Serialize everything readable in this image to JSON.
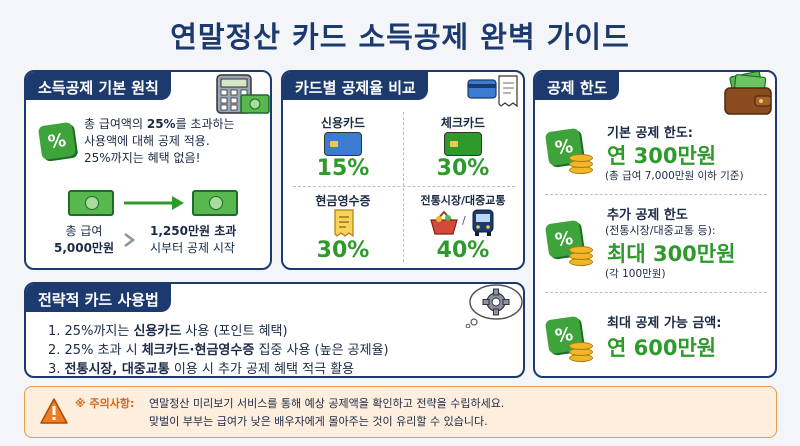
{
  "title": "연말정산 카드 소득공제 완벽 가이드",
  "principle": {
    "header": "소득공제 기본 원칙",
    "desc_line1_pre": "총 급여액의 ",
    "desc_line1_bold": "25%",
    "desc_line1_post": "를 초과하는",
    "desc_line2": "사용액에 대해 공제 적용.",
    "desc_line3": "25%까지는 혜택 없음!",
    "flow_left_line1": "총 급여",
    "flow_left_line2": "5,000만원",
    "flow_right_line1": "1,250만원 초과",
    "flow_right_line2": "시부터 공제 시작"
  },
  "rates": {
    "header": "카드별 공제율 비교",
    "items": [
      {
        "label": "신용카드",
        "value": "15%",
        "color": "#3b7bd0"
      },
      {
        "label": "체크카드",
        "value": "30%",
        "color": "#2e9a2b"
      },
      {
        "label": "현금영수증",
        "value": "30%",
        "color": "#f1c84b"
      },
      {
        "label": "전통시장/대중교통",
        "value": "40%",
        "color": "#1d3a6e"
      }
    ]
  },
  "limits": {
    "header": "공제 한도",
    "basic_title": "기본 공제 한도:",
    "basic_value": "연 300만원",
    "basic_note": "(총 급여 7,000만원 이하 기준)",
    "extra_title": "추가 공제 한도",
    "extra_sub": "(전통시장/대중교통 등):",
    "extra_value": "최대 300만원",
    "extra_note": "(각 100만원)",
    "max_title": "최대 공제 가능 금액:",
    "max_value": "연 600만원"
  },
  "strategy": {
    "header": "전략적 카드 사용법",
    "item1_pre": "1. 25%까지는 ",
    "item1_bold": "신용카드",
    "item1_post": " 사용 (포인트 혜택)",
    "item2_pre": "2. 25% 초과 시 ",
    "item2_bold": "체크카드·현금영수증",
    "item2_post": " 집중 사용 (높은 공제율)",
    "item3_pre": "3. ",
    "item3_bold": "전통시장, 대중교통",
    "item3_post": " 이용 시 추가 공제 혜택 적극 활용"
  },
  "notice": {
    "label": "※ 주의사항:",
    "line1": "연말정산 미리보기 서비스를 통해 예상 공제액을 확인하고 전략을 수립하세요.",
    "line2": "맞벌이 부부는 급여가 낮은 배우자에게 몰아주는 것이 유리할 수 있습니다."
  }
}
